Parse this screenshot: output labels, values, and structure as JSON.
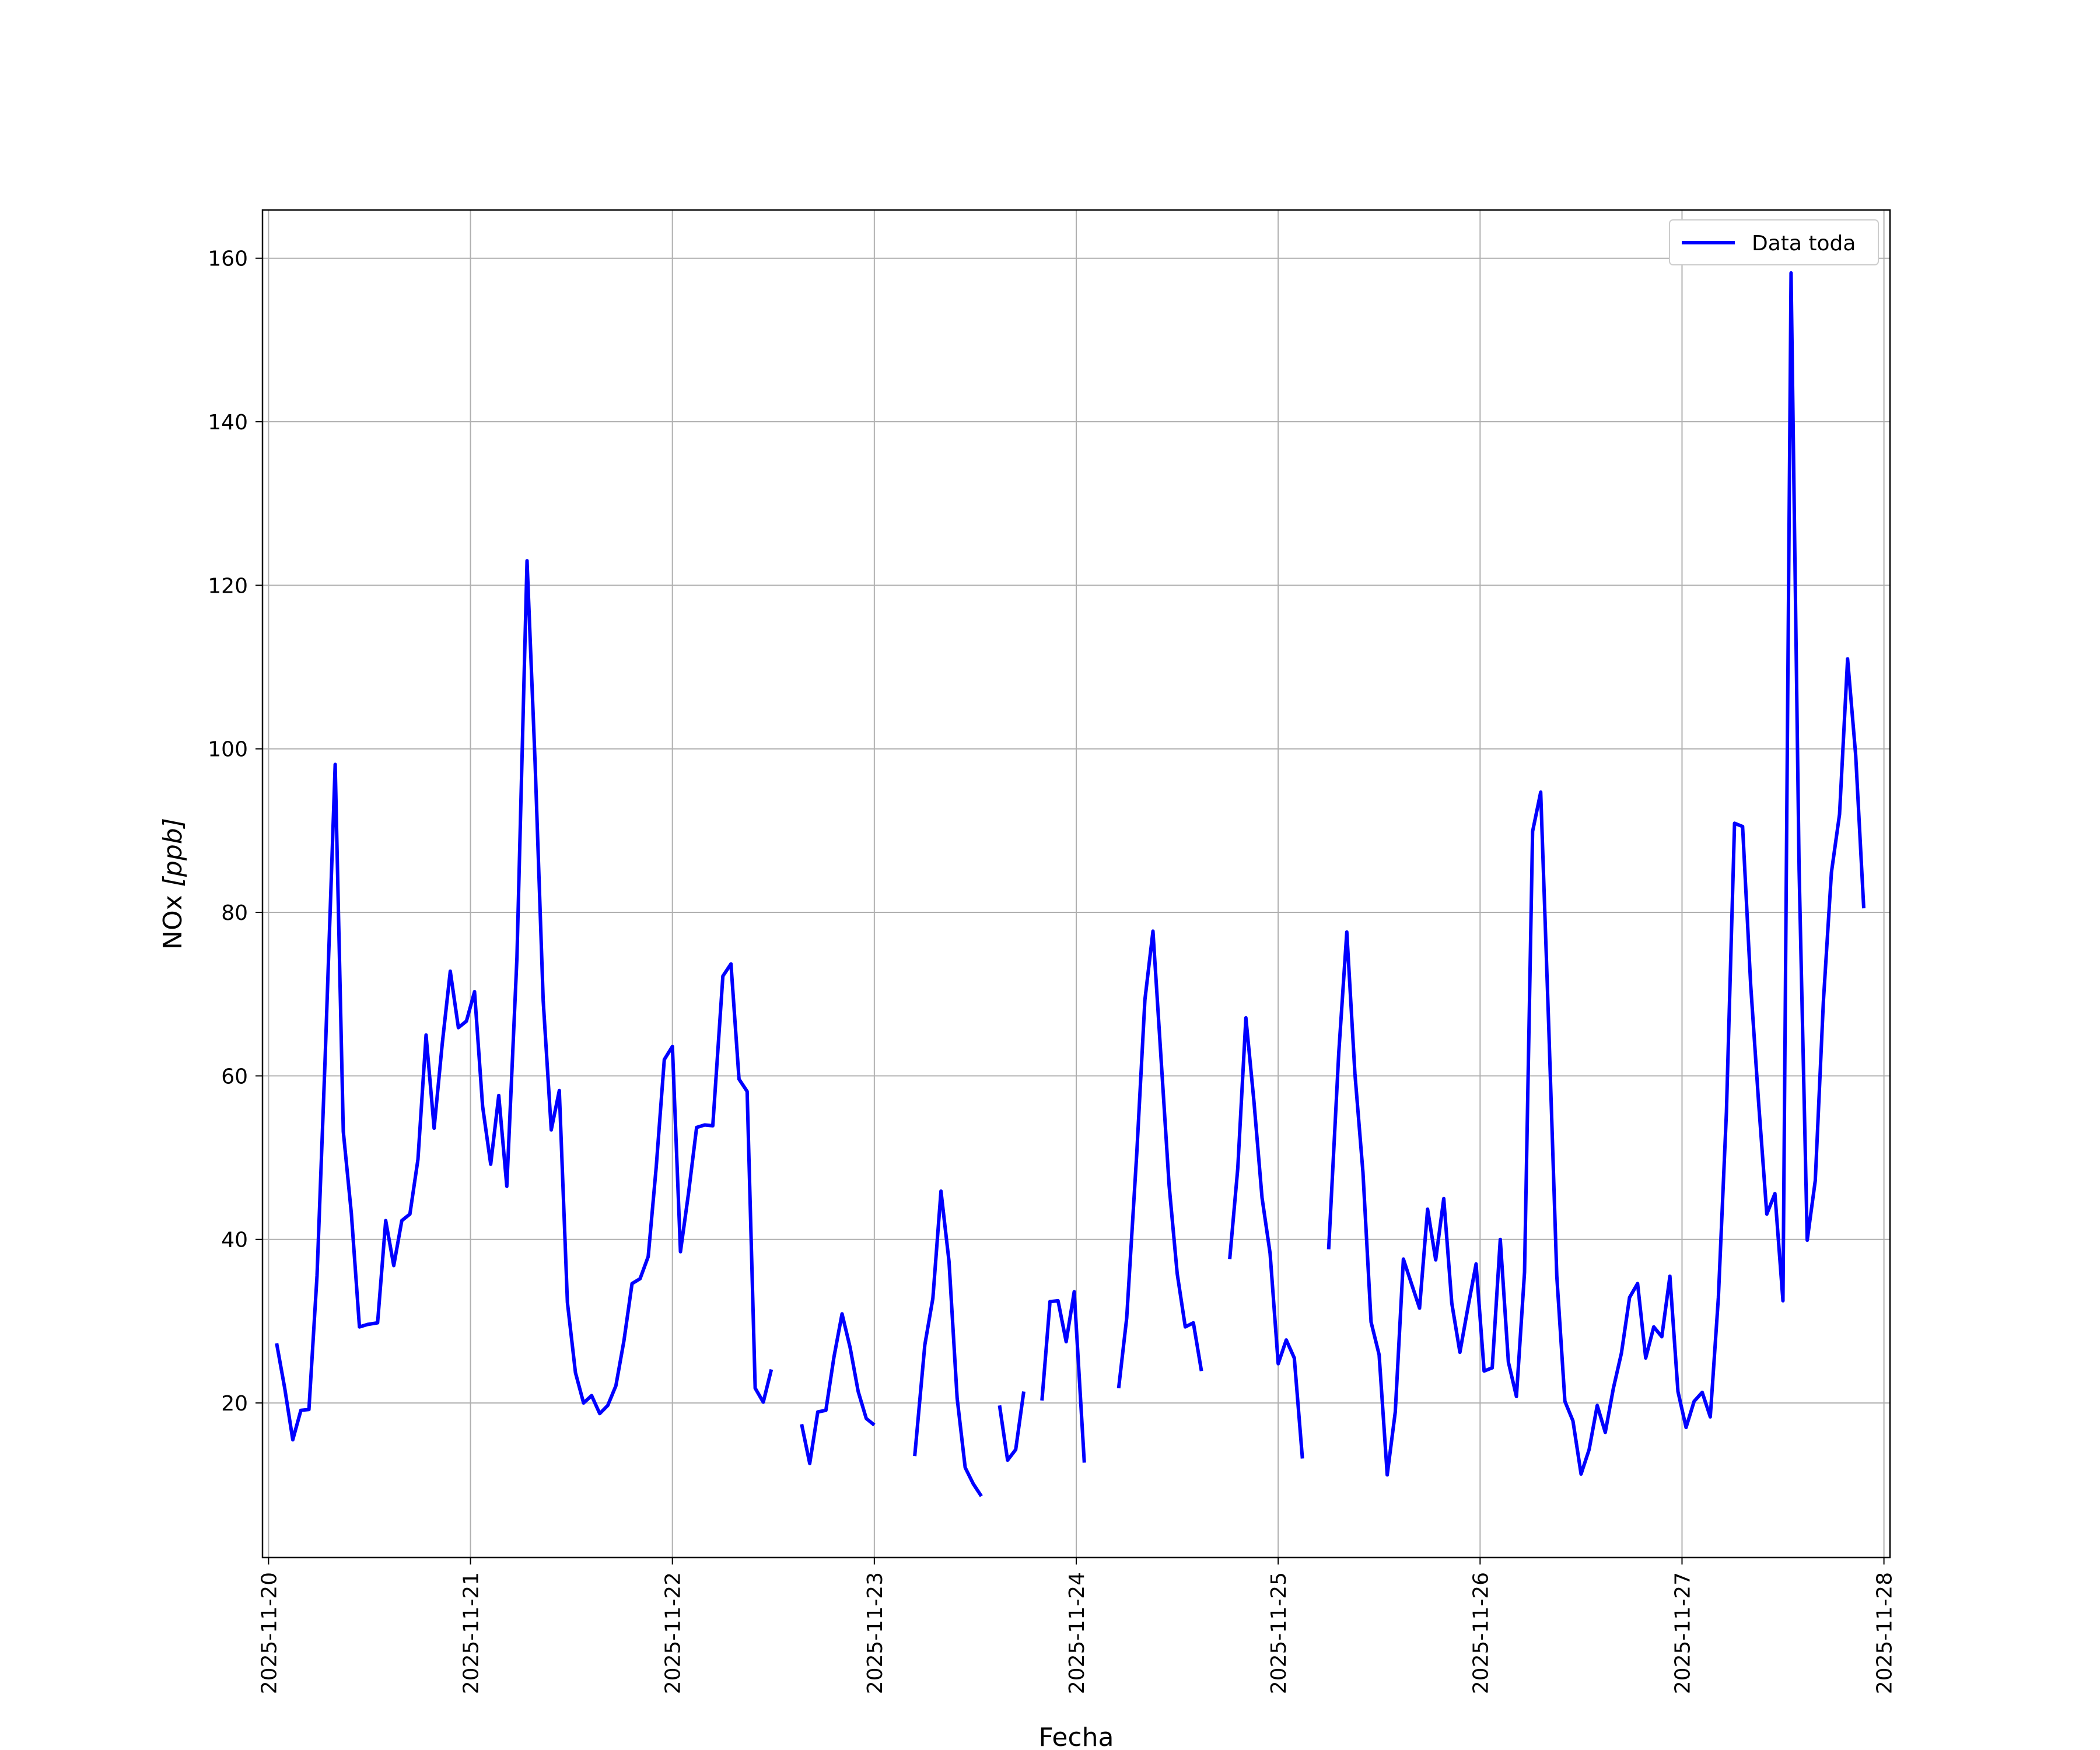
{
  "chart_data": {
    "type": "line",
    "xlabel": "Fecha",
    "ylabel": "NOx [ppb]",
    "ylabel_main": "NOx ",
    "ylabel_unit": "[ppb]",
    "xlim": [
      -0.03,
      8.03
    ],
    "ylim": [
      1.1,
      165.9
    ],
    "grid": true,
    "legend_position": "top-right",
    "x_ticks": [
      "2025-11-20",
      "2025-11-21",
      "2025-11-22",
      "2025-11-23",
      "2025-11-24",
      "2025-11-25",
      "2025-11-26",
      "2025-11-27",
      "2025-11-28"
    ],
    "y_ticks": [
      20,
      40,
      60,
      80,
      100,
      120,
      140,
      160
    ],
    "series": [
      {
        "name": "Data toda",
        "color": "#0000ff",
        "x_unit": "days since 2025-11-20",
        "segments": [
          [
            [
              0.04,
              27.3
            ],
            [
              0.08,
              21.8
            ],
            [
              0.12,
              15.5
            ],
            [
              0.16,
              19.1
            ],
            [
              0.2,
              19.2
            ],
            [
              0.24,
              35.6
            ],
            [
              0.28,
              62.0
            ],
            [
              0.33,
              98.1
            ],
            [
              0.37,
              53.2
            ],
            [
              0.41,
              43.2
            ],
            [
              0.45,
              29.3
            ],
            [
              0.49,
              29.6
            ],
            [
              0.54,
              29.8
            ],
            [
              0.58,
              42.3
            ],
            [
              0.62,
              36.8
            ],
            [
              0.66,
              42.3
            ],
            [
              0.7,
              43.1
            ],
            [
              0.74,
              49.8
            ],
            [
              0.78,
              65.0
            ],
            [
              0.82,
              53.6
            ],
            [
              0.86,
              63.9
            ],
            [
              0.9,
              72.8
            ],
            [
              0.94,
              65.9
            ],
            [
              0.98,
              66.7
            ],
            [
              1.02,
              70.3
            ],
            [
              1.06,
              56.3
            ],
            [
              1.1,
              49.2
            ],
            [
              1.14,
              57.6
            ],
            [
              1.18,
              46.5
            ],
            [
              1.23,
              74.5
            ],
            [
              1.28,
              123.0
            ],
            [
              1.32,
              98.3
            ],
            [
              1.36,
              69.2
            ],
            [
              1.4,
              53.4
            ],
            [
              1.44,
              58.2
            ],
            [
              1.48,
              32.3
            ],
            [
              1.52,
              23.7
            ],
            [
              1.56,
              20.0
            ],
            [
              1.6,
              20.9
            ],
            [
              1.64,
              18.7
            ],
            [
              1.68,
              19.7
            ],
            [
              1.72,
              22.1
            ],
            [
              1.76,
              27.6
            ],
            [
              1.8,
              34.6
            ],
            [
              1.84,
              35.2
            ],
            [
              1.88,
              37.9
            ],
            [
              1.92,
              48.9
            ],
            [
              1.96,
              62.0
            ],
            [
              2.0,
              63.6
            ],
            [
              2.04,
              38.5
            ],
            [
              2.08,
              45.7
            ],
            [
              2.12,
              53.7
            ],
            [
              2.16,
              54.0
            ],
            [
              2.2,
              53.9
            ],
            [
              2.25,
              72.2
            ],
            [
              2.29,
              73.7
            ],
            [
              2.33,
              59.6
            ],
            [
              2.37,
              58.1
            ],
            [
              2.41,
              21.8
            ],
            [
              2.45,
              20.1
            ],
            [
              2.49,
              24.1
            ]
          ],
          [
            [
              2.64,
              17.4
            ],
            [
              2.68,
              12.6
            ],
            [
              2.72,
              18.9
            ],
            [
              2.76,
              19.1
            ],
            [
              2.8,
              25.6
            ],
            [
              2.84,
              30.9
            ],
            [
              2.88,
              26.8
            ],
            [
              2.92,
              21.4
            ],
            [
              2.96,
              18.1
            ],
            [
              3.0,
              17.3
            ]
          ],
          [
            [
              3.2,
              13.5
            ],
            [
              3.25,
              27.1
            ],
            [
              3.29,
              32.8
            ],
            [
              3.33,
              45.9
            ],
            [
              3.37,
              37.3
            ],
            [
              3.41,
              20.6
            ],
            [
              3.45,
              12.1
            ],
            [
              3.49,
              10.1
            ],
            [
              3.53,
              8.6
            ]
          ],
          [
            [
              3.62,
              19.7
            ],
            [
              3.66,
              13.0
            ],
            [
              3.7,
              14.3
            ],
            [
              3.74,
              21.4
            ]
          ],
          [
            [
              3.83,
              20.3
            ],
            [
              3.87,
              32.4
            ],
            [
              3.91,
              32.5
            ],
            [
              3.95,
              27.5
            ],
            [
              3.99,
              33.6
            ],
            [
              4.04,
              12.7
            ]
          ],
          [
            [
              4.21,
              21.8
            ],
            [
              4.25,
              30.4
            ],
            [
              4.3,
              50.6
            ],
            [
              4.34,
              69.3
            ],
            [
              4.38,
              77.7
            ],
            [
              4.42,
              62.1
            ],
            [
              4.46,
              46.6
            ],
            [
              4.5,
              35.8
            ],
            [
              4.54,
              29.3
            ],
            [
              4.58,
              29.8
            ],
            [
              4.62,
              23.9
            ]
          ],
          [
            [
              4.76,
              37.6
            ],
            [
              4.8,
              48.7
            ],
            [
              4.84,
              67.1
            ],
            [
              4.88,
              56.9
            ],
            [
              4.92,
              45.1
            ],
            [
              4.96,
              38.3
            ],
            [
              5.0,
              24.8
            ],
            [
              5.04,
              27.7
            ],
            [
              5.08,
              25.5
            ],
            [
              5.12,
              13.2
            ]
          ],
          [
            [
              5.25,
              38.8
            ],
            [
              5.3,
              62.8
            ],
            [
              5.34,
              77.6
            ],
            [
              5.38,
              60.3
            ],
            [
              5.42,
              48.2
            ],
            [
              5.46,
              29.9
            ],
            [
              5.5,
              25.9
            ],
            [
              5.54,
              11.2
            ],
            [
              5.58,
              18.9
            ],
            [
              5.62,
              37.6
            ],
            [
              5.66,
              34.6
            ],
            [
              5.7,
              31.6
            ],
            [
              5.74,
              43.7
            ],
            [
              5.78,
              37.5
            ],
            [
              5.82,
              45.0
            ],
            [
              5.86,
              32.2
            ],
            [
              5.9,
              26.2
            ],
            [
              5.94,
              31.7
            ],
            [
              5.98,
              37.0
            ],
            [
              6.02,
              23.9
            ],
            [
              6.06,
              24.3
            ],
            [
              6.1,
              40.0
            ],
            [
              6.14,
              25.0
            ],
            [
              6.18,
              20.8
            ],
            [
              6.22,
              36.0
            ],
            [
              6.26,
              89.9
            ],
            [
              6.3,
              94.7
            ],
            [
              6.34,
              66.0
            ],
            [
              6.38,
              35.5
            ],
            [
              6.42,
              20.2
            ],
            [
              6.46,
              17.8
            ],
            [
              6.5,
              11.3
            ],
            [
              6.54,
              14.3
            ],
            [
              6.58,
              19.7
            ],
            [
              6.62,
              16.4
            ],
            [
              6.66,
              21.8
            ],
            [
              6.7,
              26.1
            ],
            [
              6.74,
              32.9
            ],
            [
              6.78,
              34.6
            ],
            [
              6.82,
              25.5
            ],
            [
              6.86,
              29.3
            ],
            [
              6.9,
              28.1
            ],
            [
              6.94,
              35.5
            ],
            [
              6.98,
              21.4
            ],
            [
              7.02,
              17.0
            ],
            [
              7.06,
              20.2
            ],
            [
              7.1,
              21.3
            ],
            [
              7.14,
              18.3
            ],
            [
              7.18,
              32.9
            ],
            [
              7.22,
              55.6
            ],
            [
              7.26,
              90.9
            ],
            [
              7.3,
              90.5
            ],
            [
              7.34,
              71.1
            ],
            [
              7.38,
              56.5
            ],
            [
              7.42,
              43.1
            ],
            [
              7.46,
              45.6
            ],
            [
              7.5,
              32.5
            ],
            [
              7.54,
              158.2
            ],
            [
              7.58,
              85.2
            ],
            [
              7.62,
              39.9
            ],
            [
              7.66,
              47.2
            ],
            [
              7.7,
              69.1
            ],
            [
              7.74,
              84.9
            ],
            [
              7.78,
              92.0
            ],
            [
              7.82,
              111.0
            ],
            [
              7.86,
              99.2
            ],
            [
              7.9,
              80.5
            ]
          ]
        ]
      }
    ]
  }
}
